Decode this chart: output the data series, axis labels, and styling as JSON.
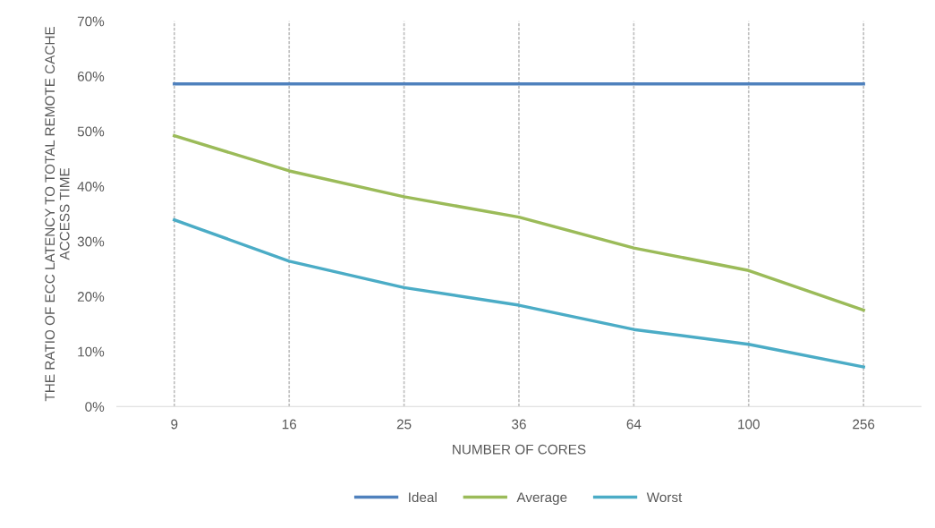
{
  "chart_data": {
    "type": "line",
    "xlabel": "NUMBER OF CORES",
    "ylabel": "THE RATIO OF ECC LATENCY TO TOTAL REMOTE CACHE ACCESS TIME",
    "categories": [
      "9",
      "16",
      "25",
      "36",
      "64",
      "100",
      "256"
    ],
    "series": [
      {
        "name": "Ideal",
        "color": "#4f81bd",
        "values": [
          58.6,
          58.6,
          58.6,
          58.6,
          58.6,
          58.6,
          58.6
        ]
      },
      {
        "name": "Average",
        "color": "#9bbb59",
        "values": [
          49.2,
          42.8,
          38.1,
          34.4,
          28.8,
          24.7,
          17.5
        ]
      },
      {
        "name": "Worst",
        "color": "#4bacc6",
        "values": [
          33.9,
          26.4,
          21.6,
          18.4,
          14.0,
          11.3,
          7.2
        ]
      }
    ],
    "ylim": [
      0,
      70
    ],
    "yticks": [
      {
        "value": 0,
        "label": "0%"
      },
      {
        "value": 10,
        "label": "10%"
      },
      {
        "value": 20,
        "label": "20%"
      },
      {
        "value": 30,
        "label": "30%"
      },
      {
        "value": 40,
        "label": "40%"
      },
      {
        "value": 50,
        "label": "50%"
      },
      {
        "value": 60,
        "label": "60%"
      },
      {
        "value": 70,
        "label": "70%"
      }
    ],
    "grid": "x",
    "legend": "bottom",
    "marker": "none",
    "line_style": "solid"
  }
}
